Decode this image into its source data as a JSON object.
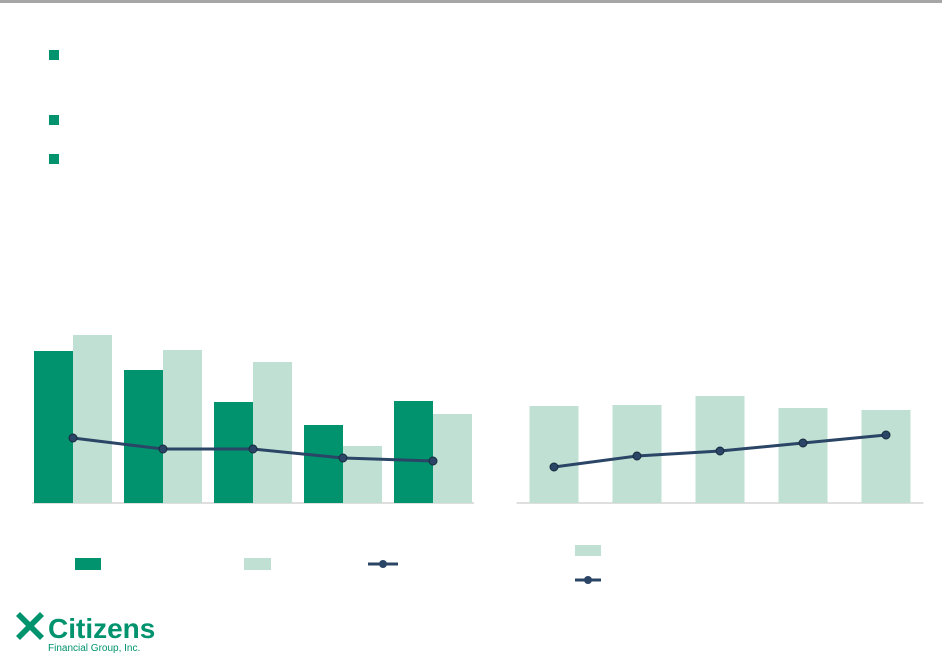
{
  "charts": [
    {
      "type": "bar",
      "categories": [
        null,
        null,
        null,
        null,
        null
      ],
      "ylim": [
        0,
        200
      ],
      "series": [
        {
          "color": "#00936e",
          "values": [
            152,
            133,
            101,
            78,
            102
          ]
        },
        {
          "color": "#bfe0d2",
          "values": [
            168,
            153,
            141,
            57,
            89
          ]
        },
        {
          "type": "line",
          "color": "#2a4566",
          "values": [
            65,
            54,
            54,
            45,
            42
          ]
        }
      ]
    },
    {
      "type": "bar",
      "categories": [
        null,
        null,
        null,
        null,
        null
      ],
      "ylim": [
        0,
        200
      ],
      "series": [
        {
          "color": "#bfe0d2",
          "values": [
            97,
            98,
            107,
            95,
            93
          ]
        },
        {
          "type": "line",
          "color": "#2a4566",
          "values": [
            36,
            47,
            52,
            60,
            68
          ]
        }
      ]
    }
  ],
  "logo": {
    "name": "Citizens",
    "tagline": "Financial Group, Inc."
  }
}
